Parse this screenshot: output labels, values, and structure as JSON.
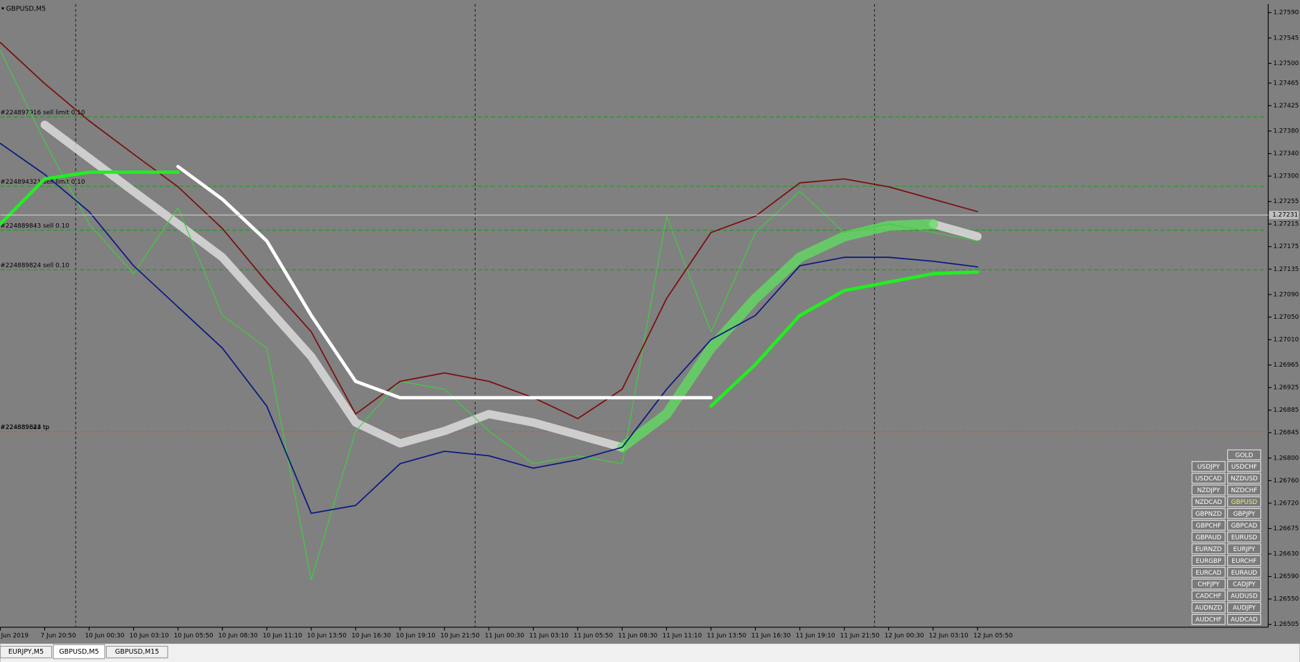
{
  "chart_data": {
    "type": "line",
    "title": "GBPUSD,M5",
    "categories": [
      "Jun 2019",
      "7 Jun 20:50",
      "10 Jun 00:30",
      "10 Jun 03:10",
      "10 Jun 05:50",
      "10 Jun 08:30",
      "10 Jun 11:10",
      "10 Jun 13:50",
      "10 Jun 16:30",
      "10 Jun 19:10",
      "10 Jun 21:50",
      "11 Jun 00:30",
      "11 Jun 03:10",
      "11 Jun 05:50",
      "11 Jun 08:30",
      "11 Jun 11:10",
      "11 Jun 13:50",
      "11 Jun 16:30",
      "11 Jun 19:10",
      "11 Jun 21:50",
      "12 Jun 00:30",
      "12 Jun 03:10",
      "12 Jun 05:50"
    ],
    "series": [
      {
        "color": "#e8e8e8",
        "width": 10,
        "values": [
          null,
          1.27391,
          1.27332,
          1.27273,
          1.27215,
          1.27156,
          1.27068,
          1.2698,
          1.26863,
          1.26826,
          1.26848,
          1.26878,
          1.26863,
          1.26841,
          1.26819,
          null,
          null,
          null,
          null,
          null,
          null,
          1.27215,
          1.27193
        ]
      },
      {
        "color": "#5fe05f",
        "width": 12,
        "values": [
          null,
          null,
          null,
          null,
          null,
          null,
          null,
          null,
          null,
          null,
          null,
          null,
          null,
          null,
          1.26819,
          1.26878,
          1.26995,
          1.27083,
          1.27156,
          1.27193,
          1.27212,
          1.27215,
          null
        ]
      },
      {
        "color": "#3ecf3e",
        "width": 1,
        "values": [
          1.27523,
          1.27361,
          1.27215,
          1.27127,
          1.27244,
          1.27053,
          1.26995,
          1.26584,
          1.26848,
          1.26936,
          1.26922,
          1.26848,
          1.2679,
          1.26804,
          1.2679,
          1.27229,
          1.27024,
          1.272,
          1.27273,
          1.272,
          1.27215,
          1.272,
          1.27185
        ]
      },
      {
        "color": "#7a0f0f",
        "width": 1.5,
        "values": [
          1.27537,
          1.27464,
          1.27398,
          1.27339,
          1.27281,
          1.27207,
          1.27112,
          1.27024,
          1.26878,
          1.26936,
          1.26951,
          1.26936,
          1.26907,
          1.2687,
          1.26922,
          1.27083,
          1.272,
          1.27229,
          1.27288,
          1.27295,
          1.27281,
          1.27259,
          1.27237
        ]
      },
      {
        "color": "#0b1a80",
        "width": 1.5,
        "values": [
          1.27358,
          1.27303,
          1.27237,
          1.27141,
          1.27068,
          1.26995,
          1.26892,
          1.26702,
          1.26716,
          1.2679,
          1.26812,
          1.26804,
          1.26782,
          1.26797,
          1.26819,
          1.26922,
          1.2701,
          1.27053,
          1.27141,
          1.27156,
          1.27156,
          1.27149,
          1.27139
        ]
      },
      {
        "color": "#22ee22",
        "width": 4,
        "values": [
          1.27215,
          1.27295,
          1.27307,
          1.27307,
          1.27307,
          null,
          null,
          null,
          null,
          null,
          null,
          null,
          null,
          null,
          null,
          null,
          1.26892,
          1.26966,
          1.27053,
          1.27097,
          1.27112,
          1.27127,
          1.2713
        ]
      },
      {
        "color": "#ffffff",
        "width": 4,
        "values": [
          null,
          null,
          null,
          null,
          1.27317,
          1.27259,
          1.27185,
          1.27053,
          1.26936,
          1.26907,
          1.26907,
          1.26907,
          1.26907,
          1.26907,
          1.26907,
          1.26907,
          1.26907,
          null,
          null,
          null,
          null,
          null,
          null
        ]
      }
    ],
    "ylim": [
      1.265,
      1.27605
    ],
    "yticks": [
      {
        "value": 1.2759,
        "label": "1.27590"
      },
      {
        "value": 1.27545,
        "label": "1.27545"
      },
      {
        "value": 1.275,
        "label": "1.27500"
      },
      {
        "value": 1.27465,
        "label": "1.27465"
      },
      {
        "value": 1.27425,
        "label": "1.27425"
      },
      {
        "value": 1.2738,
        "label": "1.27380"
      },
      {
        "value": 1.2734,
        "label": "1.27340"
      },
      {
        "value": 1.273,
        "label": "1.27300"
      },
      {
        "value": 1.27255,
        "label": "1.27255"
      },
      {
        "value": 1.27215,
        "label": "1.27215"
      },
      {
        "value": 1.27175,
        "label": "1.27175"
      },
      {
        "value": 1.27135,
        "label": "1.27135"
      },
      {
        "value": 1.2709,
        "label": "1.27090"
      },
      {
        "value": 1.2705,
        "label": "1.27050"
      },
      {
        "value": 1.2701,
        "label": "1.27010"
      },
      {
        "value": 1.26965,
        "label": "1.26965"
      },
      {
        "value": 1.26925,
        "label": "1.26925"
      },
      {
        "value": 1.26885,
        "label": "1.26885"
      },
      {
        "value": 1.26845,
        "label": "1.26845"
      },
      {
        "value": 1.268,
        "label": "1.26800"
      },
      {
        "value": 1.2676,
        "label": "1.26760"
      },
      {
        "value": 1.2672,
        "label": "1.26720"
      },
      {
        "value": 1.26675,
        "label": "1.26675"
      },
      {
        "value": 1.2663,
        "label": "1.26630"
      },
      {
        "value": 1.2659,
        "label": "1.26590"
      },
      {
        "value": 1.2655,
        "label": "1.26550"
      },
      {
        "value": 1.26505,
        "label": "1.26505"
      }
    ],
    "current_price": {
      "value": 1.27231,
      "label": "1.27231"
    },
    "levels": [
      {
        "value": 1.27405,
        "label": "#224897916 sell limit 0.10",
        "color": "#1f9a1f"
      },
      {
        "value": 1.27282,
        "label": "#224894321 sell limit 0.10",
        "color": "#1f9a1f"
      },
      {
        "value": 1.27204,
        "label": "#224889843 sell 0.10",
        "color": "#1f9a1f"
      },
      {
        "value": 1.27134,
        "label": "#224889824 sell 0.10",
        "color": "#1f9a1f"
      },
      {
        "value": 1.26847,
        "label": "#224889843 tp",
        "color": "#e0541c"
      },
      {
        "value": 1.26847,
        "label": "#224889824 tp",
        "color": "#e0541c"
      }
    ]
  },
  "symbols": {
    "top": "GOLD",
    "rows": [
      [
        "USDJPY",
        "USDCHF"
      ],
      [
        "USDCAD",
        "NZDUSD"
      ],
      [
        "NZDJPY",
        "NZDCHF"
      ],
      [
        "NZDCAD",
        "GBPUSD"
      ],
      [
        "GBPNZD",
        "GBPJPY"
      ],
      [
        "GBPCHF",
        "GBPCAD"
      ],
      [
        "GBPAUD",
        "EURUSD"
      ],
      [
        "EURNZD",
        "EURJPY"
      ],
      [
        "EURGBP",
        "EURCHF"
      ],
      [
        "EURCAD",
        "EURAUD"
      ],
      [
        "CHFJPY",
        "CADJPY"
      ],
      [
        "CADCHF",
        "AUDUSD"
      ],
      [
        "AUDNZD",
        "AUDJPY"
      ],
      [
        "AUDCHF",
        "AUDCAD"
      ]
    ]
  },
  "tabs": [
    "EURJPY,M5",
    "GBPUSD,M5",
    "GBPUSD,M15"
  ]
}
